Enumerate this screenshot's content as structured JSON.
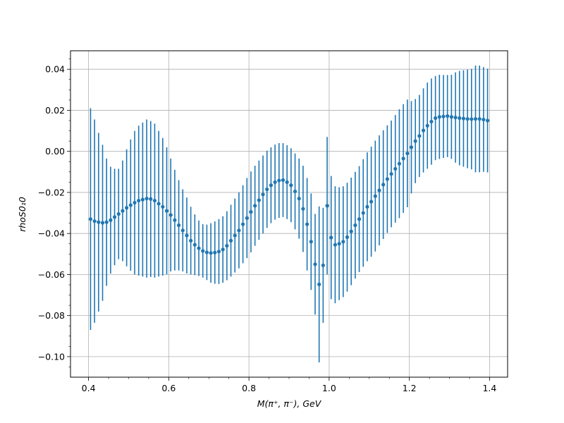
{
  "chart_data": {
    "type": "scatter",
    "subtype": "errorbar",
    "title": "",
    "xlabel": "M(π⁺, π⁻), GeV",
    "ylabel": "rhoS0₁0",
    "xlim": [
      0.355,
      1.445
    ],
    "ylim": [
      -0.11,
      0.049
    ],
    "xticks": [
      0.4,
      0.6,
      0.8,
      1.0,
      1.2,
      1.4
    ],
    "xtick_labels": [
      "0.4",
      "0.6",
      "0.8",
      "1.0",
      "1.2",
      "1.4"
    ],
    "yticks": [
      -0.1,
      -0.08,
      -0.06,
      -0.04,
      -0.02,
      0.0,
      0.02,
      0.04
    ],
    "ytick_labels": [
      "−0.10",
      "−0.08",
      "−0.06",
      "−0.04",
      "−0.02",
      "0.00",
      "0.02",
      "0.04"
    ],
    "grid": true,
    "legend": "none",
    "marker_color": "#1f77b4",
    "series": [
      {
        "x": [
          0.405,
          0.415,
          0.425,
          0.435,
          0.445,
          0.455,
          0.465,
          0.475,
          0.485,
          0.495,
          0.505,
          0.515,
          0.525,
          0.535,
          0.545,
          0.555,
          0.565,
          0.575,
          0.585,
          0.595,
          0.605,
          0.615,
          0.625,
          0.635,
          0.645,
          0.655,
          0.665,
          0.675,
          0.685,
          0.695,
          0.705,
          0.715,
          0.725,
          0.735,
          0.745,
          0.755,
          0.765,
          0.775,
          0.785,
          0.795,
          0.805,
          0.815,
          0.825,
          0.835,
          0.845,
          0.855,
          0.865,
          0.875,
          0.885,
          0.895,
          0.905,
          0.915,
          0.925,
          0.935,
          0.945,
          0.955,
          0.965,
          0.975,
          0.985,
          0.995,
          1.005,
          1.015,
          1.025,
          1.035,
          1.045,
          1.055,
          1.065,
          1.075,
          1.085,
          1.095,
          1.105,
          1.115,
          1.125,
          1.135,
          1.145,
          1.155,
          1.165,
          1.175,
          1.185,
          1.195,
          1.205,
          1.215,
          1.225,
          1.235,
          1.245,
          1.255,
          1.265,
          1.275,
          1.285,
          1.295,
          1.305,
          1.315,
          1.325,
          1.335,
          1.345,
          1.355,
          1.365,
          1.375,
          1.385,
          1.395
        ],
        "y": [
          -0.033,
          -0.034,
          -0.0345,
          -0.0348,
          -0.0345,
          -0.0335,
          -0.032,
          -0.0305,
          -0.029,
          -0.0275,
          -0.0262,
          -0.025,
          -0.024,
          -0.0235,
          -0.023,
          -0.0232,
          -0.024,
          -0.0255,
          -0.027,
          -0.029,
          -0.031,
          -0.0335,
          -0.036,
          -0.0385,
          -0.041,
          -0.0435,
          -0.0455,
          -0.0472,
          -0.0485,
          -0.0492,
          -0.0495,
          -0.0493,
          -0.0488,
          -0.0478,
          -0.046,
          -0.0435,
          -0.041,
          -0.0385,
          -0.0355,
          -0.0325,
          -0.0295,
          -0.0265,
          -0.0238,
          -0.021,
          -0.0185,
          -0.0165,
          -0.015,
          -0.0142,
          -0.014,
          -0.015,
          -0.0165,
          -0.0195,
          -0.023,
          -0.028,
          -0.0355,
          -0.044,
          -0.055,
          -0.0648,
          -0.0555,
          -0.0265,
          -0.042,
          -0.0455,
          -0.045,
          -0.044,
          -0.0418,
          -0.039,
          -0.036,
          -0.033,
          -0.03,
          -0.027,
          -0.0245,
          -0.0218,
          -0.019,
          -0.0162,
          -0.0135,
          -0.011,
          -0.0085,
          -0.006,
          -0.0035,
          -0.001,
          0.002,
          0.005,
          0.0075,
          0.0102,
          0.0125,
          0.0145,
          0.0162,
          0.0168,
          0.017,
          0.0172,
          0.0168,
          0.0165,
          0.0162,
          0.016,
          0.0158,
          0.0157,
          0.0158,
          0.0158,
          0.0155,
          0.015
        ],
        "yerr": [
          0.054,
          0.0495,
          0.0435,
          0.038,
          0.031,
          0.026,
          0.0235,
          0.022,
          0.0245,
          0.0285,
          0.032,
          0.035,
          0.0365,
          0.0375,
          0.0385,
          0.038,
          0.0375,
          0.0355,
          0.0335,
          0.031,
          0.0275,
          0.0245,
          0.022,
          0.02,
          0.0185,
          0.0165,
          0.0148,
          0.0135,
          0.013,
          0.0135,
          0.0145,
          0.0152,
          0.0158,
          0.0162,
          0.0168,
          0.0175,
          0.018,
          0.0185,
          0.019,
          0.0195,
          0.0197,
          0.0195,
          0.0193,
          0.019,
          0.0188,
          0.0185,
          0.0183,
          0.0182,
          0.018,
          0.018,
          0.018,
          0.0185,
          0.0195,
          0.021,
          0.0225,
          0.0235,
          0.0245,
          0.038,
          0.028,
          0.0335,
          0.03,
          0.0285,
          0.0275,
          0.027,
          0.0265,
          0.0262,
          0.026,
          0.0258,
          0.0262,
          0.0265,
          0.0268,
          0.027,
          0.0268,
          0.0265,
          0.0262,
          0.026,
          0.0262,
          0.0265,
          0.0265,
          0.0262,
          0.0225,
          0.0205,
          0.02,
          0.0205,
          0.021,
          0.021,
          0.0205,
          0.0205,
          0.0202,
          0.02,
          0.0205,
          0.022,
          0.023,
          0.0235,
          0.024,
          0.0245,
          0.026,
          0.026,
          0.0255,
          0.0253
        ]
      }
    ]
  }
}
